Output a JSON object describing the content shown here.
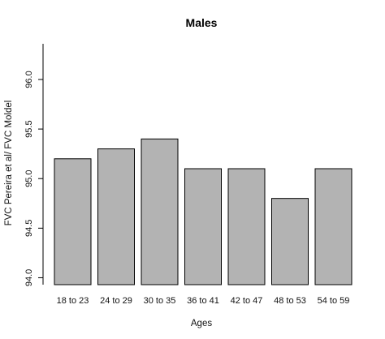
{
  "chart_data": {
    "type": "bar",
    "title": "Males",
    "xlabel": "Ages",
    "ylabel": "FVC Pereira et al/ FVC Moldel",
    "categories": [
      "18 to 23",
      "24 to 29",
      "30 to 35",
      "36 to 41",
      "42 to 47",
      "48 to 53",
      "54 to 59"
    ],
    "values": [
      95.2,
      95.3,
      95.4,
      95.1,
      95.1,
      94.8,
      95.1
    ],
    "yticks": [
      "94.0",
      "94.5",
      "95.0",
      "95.5",
      "96.0"
    ],
    "ylim": [
      93.93,
      96.36
    ],
    "grid": false,
    "colors": {
      "bar_fill": "#b3b3b3",
      "bar_stroke": "#000000"
    }
  }
}
